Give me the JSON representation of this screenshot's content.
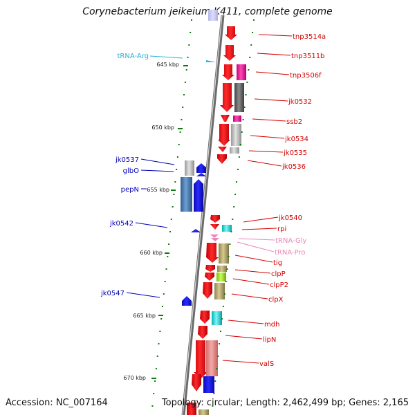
{
  "title": "Corynebacterium jeikeium K411, complete genome",
  "accession": "Accession: NC_007164",
  "topology": "Topology: circular; Length: 2,462,499 bp; Genes: 2,165",
  "colors": {
    "forward": "#e8121c",
    "reverse": "#1a1adc",
    "label_red": "#d40000",
    "label_blue": "#0000b4",
    "trna_arg": "#27b2d6",
    "trna_pink": "#e986b8",
    "tick": "#0a7a0a"
  },
  "scale_labels": [
    "645 kbp",
    "650 kbp",
    "655 kbp",
    "660 kbp",
    "665 kbp",
    "670 kbp"
  ],
  "gene_labels": [
    {
      "name": "tnp3514a",
      "color": "red"
    },
    {
      "name": "tnp3511b",
      "color": "red"
    },
    {
      "name": "tnp3506f",
      "color": "red"
    },
    {
      "name": "jk0532",
      "color": "red"
    },
    {
      "name": "ssb2",
      "color": "red"
    },
    {
      "name": "jk0534",
      "color": "red"
    },
    {
      "name": "jk0535",
      "color": "red"
    },
    {
      "name": "jk0536",
      "color": "red"
    },
    {
      "name": "jk0540",
      "color": "red"
    },
    {
      "name": "rpi",
      "color": "red"
    },
    {
      "name": "tRNA-Gly",
      "color": "pink"
    },
    {
      "name": "tRNA-Pro",
      "color": "pink"
    },
    {
      "name": "tig",
      "color": "red"
    },
    {
      "name": "clpP",
      "color": "red"
    },
    {
      "name": "clpP2",
      "color": "red"
    },
    {
      "name": "clpX",
      "color": "red"
    },
    {
      "name": "mdh",
      "color": "red"
    },
    {
      "name": "lipN",
      "color": "red"
    },
    {
      "name": "valS",
      "color": "red"
    },
    {
      "name": "tRNA-Arg",
      "color": "cyan"
    },
    {
      "name": "jk0537",
      "color": "blue"
    },
    {
      "name": "glbO",
      "color": "blue"
    },
    {
      "name": "pepN",
      "color": "blue"
    },
    {
      "name": "jk0542",
      "color": "blue"
    },
    {
      "name": "jk0547",
      "color": "blue"
    }
  ]
}
